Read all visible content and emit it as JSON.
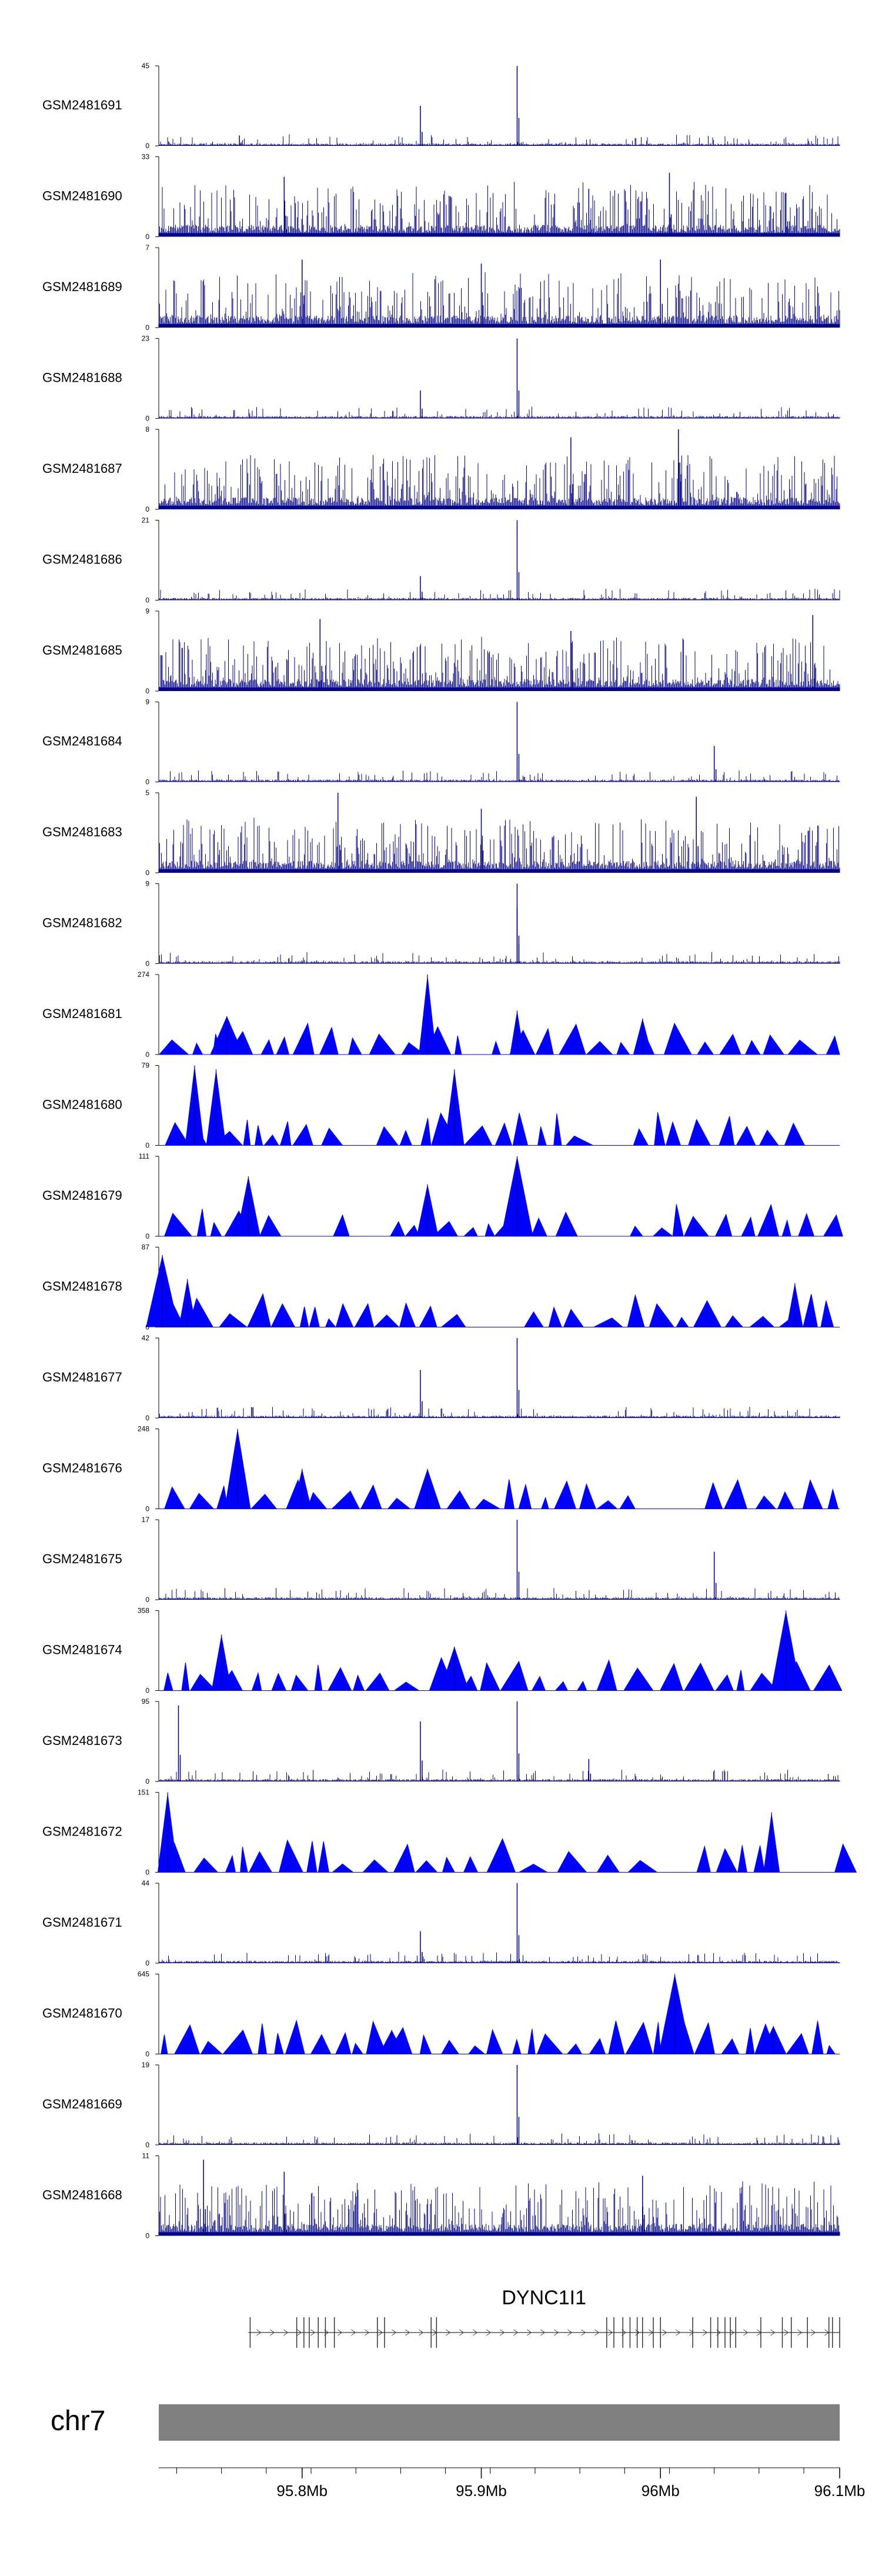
{
  "chart_data": {
    "type": "area",
    "region": {
      "chromosome": "chr7",
      "start_mb": 95.72,
      "end_mb": 96.1
    },
    "x_ticks": [
      {
        "mb": 95.8,
        "label": "95.8Mb"
      },
      {
        "mb": 95.9,
        "label": "95.9Mb"
      },
      {
        "mb": 96.0,
        "label": "96Mb"
      },
      {
        "mb": 96.1,
        "label": "96.1Mb"
      }
    ],
    "gene": {
      "name": "DYNC1I1",
      "start_mb": 95.77,
      "end_mb": 96.1,
      "exons_mb": [
        95.771,
        95.797,
        95.801,
        95.804,
        95.809,
        95.813,
        95.818,
        95.842,
        95.846,
        95.872,
        95.875,
        95.97,
        95.974,
        95.979,
        95.983,
        95.987,
        95.99,
        95.996,
        96.0,
        96.018,
        96.028,
        96.032,
        96.036,
        96.039,
        96.042,
        96.056,
        96.068,
        96.073,
        96.082,
        96.094,
        96.096,
        96.1
      ]
    },
    "series": [
      {
        "name": "GSM2481691",
        "ymax": 45,
        "style": "sparse",
        "peaks": [
          [
            95.765,
            0.13
          ],
          [
            95.866,
            0.5
          ],
          [
            95.92,
            1.0
          ]
        ]
      },
      {
        "name": "GSM2481690",
        "ymax": 33,
        "style": "dense",
        "peaks": [
          [
            95.79,
            0.75
          ],
          [
            95.96,
            0.6
          ],
          [
            96.005,
            0.8
          ],
          [
            96.07,
            0.55
          ]
        ]
      },
      {
        "name": "GSM2481689",
        "ymax": 7,
        "style": "dense",
        "peaks": [
          [
            95.8,
            0.85
          ],
          [
            95.9,
            0.8
          ],
          [
            96.0,
            0.85
          ]
        ]
      },
      {
        "name": "GSM2481688",
        "ymax": 23,
        "style": "sparse",
        "peaks": [
          [
            95.866,
            0.35
          ],
          [
            95.92,
            1.0
          ]
        ]
      },
      {
        "name": "GSM2481687",
        "ymax": 8,
        "style": "dense",
        "peaks": [
          [
            95.95,
            0.9
          ],
          [
            96.01,
            1.0
          ]
        ]
      },
      {
        "name": "GSM2481686",
        "ymax": 21,
        "style": "sparse",
        "peaks": [
          [
            95.866,
            0.3
          ],
          [
            95.92,
            1.0
          ]
        ]
      },
      {
        "name": "GSM2481685",
        "ymax": 9,
        "style": "dense",
        "peaks": [
          [
            95.81,
            0.9
          ],
          [
            95.95,
            0.75
          ],
          [
            96.085,
            0.95
          ]
        ]
      },
      {
        "name": "GSM2481684",
        "ymax": 9,
        "style": "sparse",
        "peaks": [
          [
            95.92,
            1.0
          ],
          [
            96.03,
            0.45
          ]
        ]
      },
      {
        "name": "GSM2481683",
        "ymax": 5,
        "style": "dense",
        "peaks": [
          [
            95.82,
            1.0
          ],
          [
            95.9,
            0.8
          ],
          [
            96.02,
            0.95
          ]
        ]
      },
      {
        "name": "GSM2481682",
        "ymax": 9,
        "style": "sparse",
        "peaks": [
          [
            95.92,
            1.0
          ],
          [
            95.92,
            0.7
          ]
        ]
      },
      {
        "name": "GSM2481681",
        "ymax": 274,
        "style": "triangles",
        "peaks": [
          [
            95.87,
            1.0
          ],
          [
            95.92,
            0.55
          ],
          [
            95.758,
            0.48
          ],
          [
            95.99,
            0.45
          ]
        ]
      },
      {
        "name": "GSM2481680",
        "ymax": 79,
        "style": "triangles",
        "peaks": [
          [
            95.74,
            1.0
          ],
          [
            95.752,
            0.95
          ],
          [
            95.885,
            0.95
          ]
        ]
      },
      {
        "name": "GSM2481679",
        "ymax": 111,
        "style": "triangles",
        "peaks": [
          [
            95.77,
            0.75
          ],
          [
            95.92,
            1.0
          ],
          [
            95.87,
            0.65
          ]
        ]
      },
      {
        "name": "GSM2481678",
        "ymax": 87,
        "style": "triangles",
        "peaks": [
          [
            95.722,
            0.9
          ],
          [
            95.736,
            0.6
          ],
          [
            96.075,
            0.55
          ]
        ]
      },
      {
        "name": "GSM2481677",
        "ymax": 42,
        "style": "sparse",
        "peaks": [
          [
            95.866,
            0.6
          ],
          [
            95.92,
            1.0
          ]
        ]
      },
      {
        "name": "GSM2481676",
        "ymax": 248,
        "style": "triangles",
        "peaks": [
          [
            95.764,
            1.0
          ],
          [
            95.8,
            0.5
          ],
          [
            95.87,
            0.5
          ]
        ]
      },
      {
        "name": "GSM2481675",
        "ymax": 17,
        "style": "sparse",
        "peaks": [
          [
            95.92,
            1.0
          ],
          [
            96.03,
            0.6
          ]
        ]
      },
      {
        "name": "GSM2481674",
        "ymax": 358,
        "style": "triangles",
        "peaks": [
          [
            96.07,
            1.0
          ],
          [
            95.755,
            0.7
          ],
          [
            95.885,
            0.55
          ]
        ]
      },
      {
        "name": "GSM2481673",
        "ymax": 95,
        "style": "sparse",
        "peaks": [
          [
            95.731,
            0.95
          ],
          [
            95.866,
            0.75
          ],
          [
            95.92,
            1.0
          ],
          [
            95.96,
            0.28
          ]
        ]
      },
      {
        "name": "GSM2481672",
        "ymax": 151,
        "style": "triangles",
        "peaks": [
          [
            95.725,
            1.0
          ],
          [
            96.062,
            0.75
          ]
        ]
      },
      {
        "name": "GSM2481671",
        "ymax": 44,
        "style": "sparse",
        "peaks": [
          [
            95.92,
            1.0
          ],
          [
            95.866,
            0.4
          ]
        ]
      },
      {
        "name": "GSM2481670",
        "ymax": 645,
        "style": "triangles",
        "peaks": [
          [
            96.008,
            1.0
          ],
          [
            96.063,
            0.35
          ],
          [
            95.85,
            0.3
          ]
        ]
      },
      {
        "name": "GSM2481669",
        "ymax": 19,
        "style": "sparse",
        "peaks": [
          [
            95.92,
            1.0
          ]
        ]
      },
      {
        "name": "GSM2481668",
        "ymax": 11,
        "style": "dense",
        "peaks": [
          [
            95.745,
            0.95
          ],
          [
            95.79,
            0.8
          ],
          [
            95.99,
            0.75
          ]
        ]
      }
    ]
  }
}
